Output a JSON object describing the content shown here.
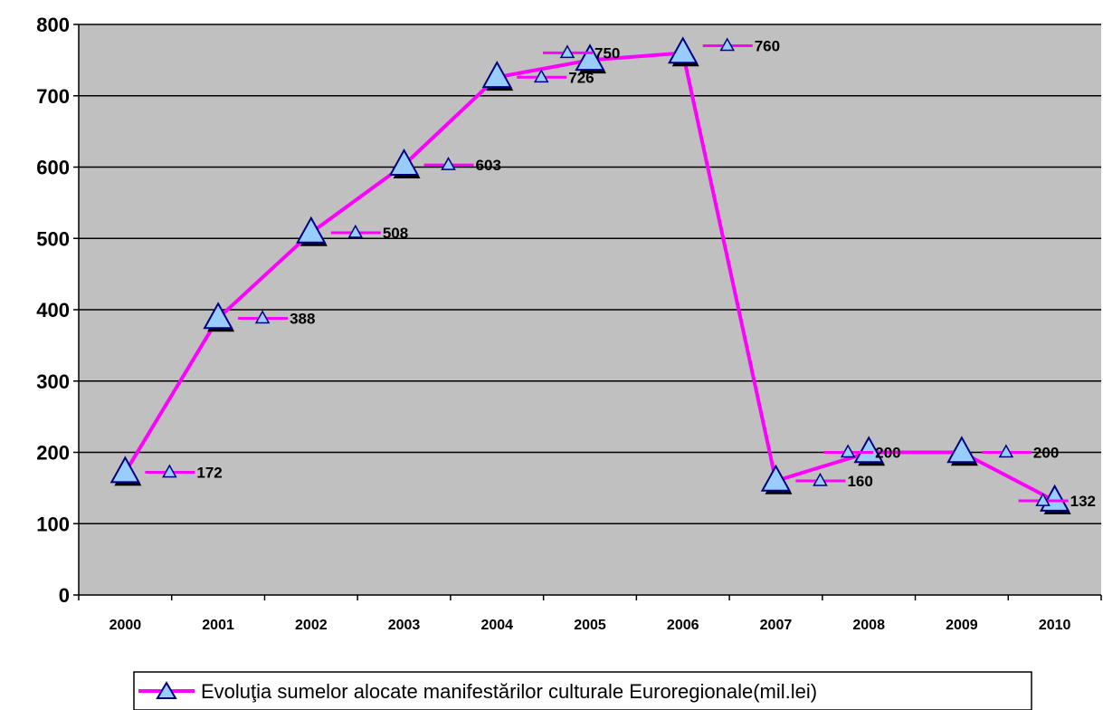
{
  "chart_data": {
    "type": "line",
    "categories": [
      "2000",
      "2001",
      "2002",
      "2003",
      "2004",
      "2005",
      "2006",
      "2007",
      "2008",
      "2009",
      "2010"
    ],
    "series": [
      {
        "name": "Evoluţia sumelor alocate manifestărilor culturale Euroregionale(mil.lei)",
        "values": [
          172,
          388,
          508,
          603,
          726,
          750,
          760,
          160,
          200,
          200,
          132
        ]
      }
    ],
    "data_labels": [
      "172",
      "388",
      "508",
      "603",
      "726",
      "750",
      "760",
      "160",
      "200",
      "200",
      "132"
    ],
    "yticks": [
      "0",
      "100",
      "200",
      "300",
      "400",
      "500",
      "600",
      "700",
      "800"
    ],
    "ylim": [
      0,
      800
    ],
    "grid": true,
    "legend_position": "bottom",
    "colors": {
      "line": "#ff00ff",
      "marker_fill": "#99ccff",
      "marker_stroke": "#000080",
      "plot_background": "#c0c0c0",
      "gridline": "#000000"
    }
  }
}
